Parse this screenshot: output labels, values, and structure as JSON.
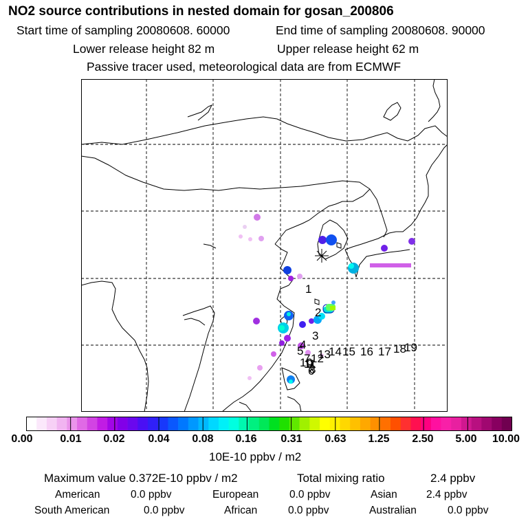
{
  "title": "NO2 source contributions in nested domain for gosan_200806",
  "header": {
    "start_time": "Start time of sampling 20080608. 60000",
    "end_time": "End time of sampling 20080608. 90000",
    "lower_height": "Lower release height   82 m",
    "upper_height": "Upper release height   62 m",
    "note": "Passive tracer used, meteorological data are from ECMWF"
  },
  "map": {
    "receptor_marker": "receptor-star",
    "trajectory_labels": [
      "1",
      "2",
      "3",
      "4",
      "5",
      "6",
      "7",
      "8",
      "9",
      "10",
      "11",
      "12",
      "13",
      "14",
      "15",
      "16",
      "17",
      "18",
      "19"
    ]
  },
  "colorbar": {
    "tick_labels": [
      "0.00",
      "0.01",
      "0.02",
      "0.04",
      "0.08",
      "0.16",
      "0.31",
      "0.63",
      "1.25",
      "2.50",
      "5.00",
      "10.00"
    ],
    "colors": [
      "#ffffff",
      "#fbe8fb",
      "#f7d0f6",
      "#f1b4f1",
      "#ea94eb",
      "#e06ae5",
      "#d244e3",
      "#c11ce4",
      "#a206e6",
      "#8200e8",
      "#6a08ee",
      "#4a10f4",
      "#3020f8",
      "#1838fb",
      "#0a58fd",
      "#0078ff",
      "#0098ff",
      "#00b8ff",
      "#00d8ff",
      "#00f0f8",
      "#00ffe0",
      "#00f8b0",
      "#00f080",
      "#00e858",
      "#00e020",
      "#20e000",
      "#60e800",
      "#a0f000",
      "#d0f800",
      "#ffff00",
      "#fff000",
      "#ffd800",
      "#ffc000",
      "#ffa800",
      "#ff9000",
      "#ff7000",
      "#ff5000",
      "#ff3030",
      "#ff1050",
      "#ff0080",
      "#ff10a0",
      "#f820a8",
      "#e820a0",
      "#d01890",
      "#b81080",
      "#a00870",
      "#880060",
      "#700050"
    ],
    "units": "10E-10 ppbv / m2"
  },
  "stats": {
    "max_label": "Maximum value  0.372E-10 ppbv / m2",
    "total_label": "Total mixing ratio",
    "total_value": "2.4 ppbv",
    "regions": [
      {
        "name": "American",
        "value": "0.0 ppbv"
      },
      {
        "name": "European",
        "value": "0.0 ppbv"
      },
      {
        "name": "Asian",
        "value": "2.4 ppbv"
      },
      {
        "name": "South American",
        "value": "0.0 ppbv"
      },
      {
        "name": "African",
        "value": "0.0 ppbv"
      },
      {
        "name": "Australian",
        "value": "0.0 ppbv"
      }
    ]
  }
}
